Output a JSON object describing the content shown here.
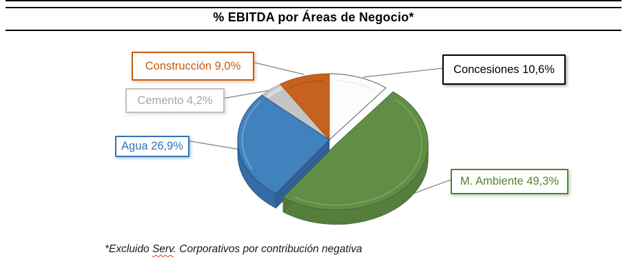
{
  "chart_data": {
    "type": "pie",
    "style": "3d-exploded",
    "title": "% EBITDA por Áreas de Negocio*",
    "unit": "%",
    "decimal_separator": ",",
    "legend": "none",
    "label_style": "external-callout-boxes",
    "slices": [
      {
        "label": "Concesiones",
        "value": 10.6,
        "callout": "Concesiones 10,6%",
        "color": "#FCFCFC",
        "edge_color": "#595959",
        "exploded": false,
        "callout_style": {
          "text": "#000000",
          "border": "#000000",
          "border_width": 2,
          "shadow": "rgba(0,0,0,0.35)"
        }
      },
      {
        "label": "M. Ambiente",
        "value": 49.3,
        "callout": "M. Ambiente 49,3%",
        "color": "#618E45",
        "side_color": "#557E3C",
        "side_dark": "#4A6D34",
        "face_color": "#4F7738",
        "edge_color": "#476932",
        "exploded": true,
        "callout_style": {
          "text": "#538135",
          "border": "#538135",
          "border_width": 2,
          "shadow": "rgba(83,129,53,0.40)"
        }
      },
      {
        "label": "Agua",
        "value": 26.9,
        "callout": "Agua 26,9%",
        "color": "#4181BE",
        "side_color": "#346CA5",
        "side_dark": "#2C5E92",
        "face_color": "#2E6196",
        "edge_color": "#27547F",
        "exploded": false,
        "callout_style": {
          "text": "#2E75B6",
          "border": "#2E75B6",
          "border_width": 2,
          "shadow": "rgba(46,117,182,0.40)"
        }
      },
      {
        "label": "Cemento",
        "value": 4.2,
        "callout": "Cemento 4,2%",
        "color": "#C4C4C4",
        "bevel_color": "#DCDCDC",
        "edge_color": "#9E9E9E",
        "exploded": false,
        "callout_style": {
          "text": "#A6A6A6",
          "border": "#BFBFBF",
          "border_width": 2,
          "shadow": "rgba(120,120,120,0.25)"
        }
      },
      {
        "label": "Construcción",
        "value": 9.0,
        "callout": "Construcción 9,0%",
        "color": "#C7611E",
        "edge_color": "#A84E15",
        "exploded": false,
        "callout_style": {
          "text": "#C55A11",
          "border": "#C55A11",
          "border_width": 2.5,
          "shadow": "rgba(197,90,17,0.35)"
        }
      }
    ]
  },
  "footnote": {
    "full": "*Excluido Serv. Corporativos por contribución negativa",
    "prefix": "*Excluido ",
    "spellcheck_word": "Serv",
    "suffix": ". Corporativos por contribución negativa",
    "spellcheck_color": "#E0321E"
  }
}
